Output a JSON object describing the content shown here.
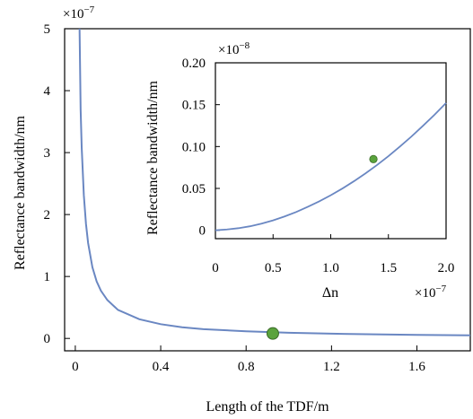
{
  "chart_data": [
    {
      "type": "line",
      "xlabel": "Length of the TDF/m",
      "ylabel": "Reflectance bandwidth/nm",
      "y_multiplier": "×10",
      "y_multiplier_exp": "−7",
      "xlim": [
        -0.05,
        1.85
      ],
      "ylim": [
        -0.2,
        5
      ],
      "xticks": [
        0,
        0.4,
        0.8,
        1.2,
        1.6
      ],
      "xtick_labels": [
        "0",
        "0.4",
        "0.8",
        "1.2",
        "1.6"
      ],
      "yticks": [
        0,
        1,
        2,
        3,
        4,
        5
      ],
      "ytick_labels": [
        "0",
        "1",
        "2",
        "3",
        "4",
        "5"
      ],
      "grid": false,
      "series": [
        {
          "color": "#6a87c2",
          "x": [
            0.02,
            0.025,
            0.03,
            0.04,
            0.05,
            0.06,
            0.08,
            0.1,
            0.12,
            0.15,
            0.2,
            0.3,
            0.4,
            0.5,
            0.6,
            0.8,
            0.925,
            1.0,
            1.2,
            1.4,
            1.6,
            1.85
          ],
          "y": [
            5.0,
            3.69,
            3.08,
            2.31,
            1.85,
            1.54,
            1.15,
            0.92,
            0.77,
            0.62,
            0.46,
            0.31,
            0.23,
            0.18,
            0.15,
            0.115,
            0.1,
            0.092,
            0.077,
            0.066,
            0.058,
            0.05
          ]
        }
      ],
      "highlight_point": {
        "x": 0.925,
        "y": 0.08,
        "color": "#5aa33c"
      }
    },
    {
      "type": "line",
      "xlabel": "Δn",
      "ylabel": "Reflectance bandwidth/nm",
      "x_multiplier": "×10",
      "x_multiplier_exp": "−7",
      "y_multiplier": "×10",
      "y_multiplier_exp": "−8",
      "xlim": [
        0,
        2.0
      ],
      "ylim": [
        -0.01,
        0.2
      ],
      "xticks": [
        0,
        0.5,
        1.0,
        1.5,
        2.0
      ],
      "xtick_labels": [
        "0",
        "0.5",
        "1.0",
        "1.5",
        "2.0"
      ],
      "yticks": [
        0,
        0.05,
        0.1,
        0.15,
        0.2
      ],
      "ytick_labels": [
        "0",
        "0.05",
        "0.10",
        "0.15",
        "0.20"
      ],
      "grid": false,
      "series": [
        {
          "color": "#6a87c2",
          "x": [
            0,
            0.1,
            0.2,
            0.3,
            0.4,
            0.5,
            0.6,
            0.7,
            0.8,
            0.9,
            1.0,
            1.1,
            1.2,
            1.3,
            1.4,
            1.5,
            1.6,
            1.7,
            1.8,
            1.9,
            2.0
          ],
          "y": [
            0,
            0.001,
            0.0025,
            0.0048,
            0.008,
            0.0118,
            0.0165,
            0.0218,
            0.028,
            0.0345,
            0.0418,
            0.0498,
            0.0585,
            0.0678,
            0.0778,
            0.0885,
            0.1,
            0.112,
            0.1248,
            0.138,
            0.152
          ]
        }
      ],
      "highlight_point": {
        "x": 1.37,
        "y": 0.085,
        "color": "#5aa33c"
      }
    }
  ]
}
